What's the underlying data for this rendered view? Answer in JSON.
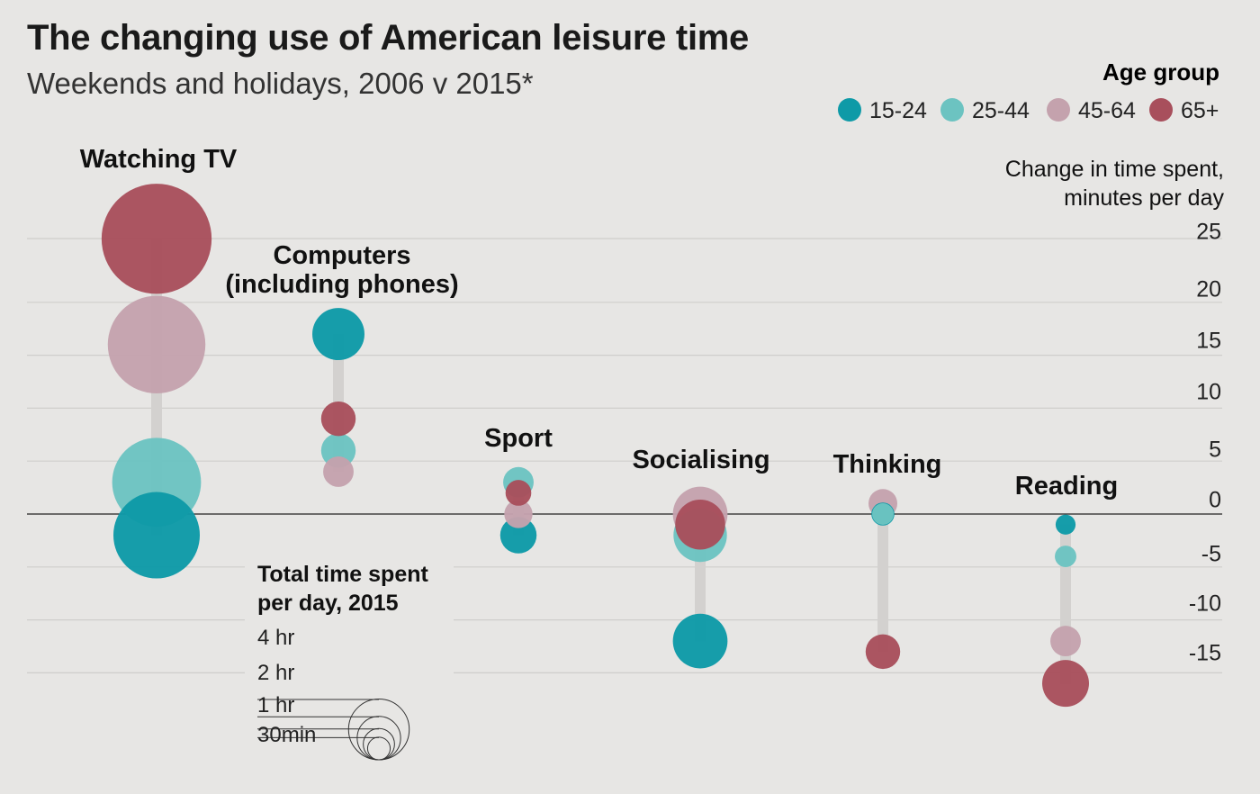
{
  "title": "The changing use of American leisure time",
  "subtitle": "Weekends and holidays, 2006 v 2015*",
  "legend": {
    "title": "Age group",
    "items": [
      {
        "label": "15-24",
        "color": "#0e9aa7"
      },
      {
        "label": "25-44",
        "color": "#6cc3c1"
      },
      {
        "label": "45-64",
        "color": "#c4a2ad"
      },
      {
        "label": "65+",
        "color": "#a84f5c"
      }
    ]
  },
  "size_legend": {
    "title_line1": "Total time spent",
    "title_line2": "per day, 2015",
    "items": [
      {
        "label": "4 hr",
        "minutes": 240
      },
      {
        "label": "2 hr",
        "minutes": 120
      },
      {
        "label": "1 hr",
        "minutes": 60
      },
      {
        "label": "30min",
        "minutes": 30
      }
    ]
  },
  "chart_data": {
    "type": "scatter",
    "title": "The changing use of American leisure time",
    "subtitle": "Weekends and holidays, 2006 v 2015*",
    "ylabel_line1": "Change in time spent,",
    "ylabel_line2": "minutes per day",
    "ylim": [
      -18,
      27
    ],
    "yticks": [
      25,
      20,
      15,
      10,
      5,
      0,
      -5,
      -10,
      -15
    ],
    "ytick_labels": [
      "25",
      "20",
      "15",
      "10",
      "5",
      "0",
      "-5",
      "-10",
      "-15"
    ],
    "series_names": [
      "15-24",
      "25-44",
      "45-64",
      "65+"
    ],
    "categories": [
      {
        "name": "Watching TV",
        "label_lines": [
          "Watching TV"
        ],
        "points": [
          {
            "group": "15-24",
            "change": -2,
            "total_minutes": 225
          },
          {
            "group": "25-44",
            "change": 3,
            "total_minutes": 238
          },
          {
            "group": "45-64",
            "change": 16,
            "total_minutes": 287
          },
          {
            "group": "65+",
            "change": 26,
            "total_minutes": 365
          }
        ]
      },
      {
        "name": "Computers (including phones)",
        "label_lines": [
          "Computers",
          "(including phones)"
        ],
        "points": [
          {
            "group": "15-24",
            "change": 17,
            "total_minutes": 82
          },
          {
            "group": "25-44",
            "change": 6,
            "total_minutes": 36
          },
          {
            "group": "45-64",
            "change": 4,
            "total_minutes": 28
          },
          {
            "group": "65+",
            "change": 9,
            "total_minutes": 36
          }
        ]
      },
      {
        "name": "Sport",
        "label_lines": [
          "Sport"
        ],
        "points": [
          {
            "group": "15-24",
            "change": -2,
            "total_minutes": 40
          },
          {
            "group": "25-44",
            "change": 3,
            "total_minutes": 28
          },
          {
            "group": "45-64",
            "change": 0,
            "total_minutes": 24
          },
          {
            "group": "65+",
            "change": 2,
            "total_minutes": 20
          }
        ]
      },
      {
        "name": "Socialising",
        "label_lines": [
          "Socialising"
        ],
        "points": [
          {
            "group": "15-24",
            "change": -12,
            "total_minutes": 90
          },
          {
            "group": "25-44",
            "change": -2,
            "total_minutes": 86
          },
          {
            "group": "45-64",
            "change": 0,
            "total_minutes": 90
          },
          {
            "group": "65+",
            "change": -1,
            "total_minutes": 75
          }
        ]
      },
      {
        "name": "Thinking",
        "label_lines": [
          "Thinking"
        ],
        "points": [
          {
            "group": "15-24",
            "change": 0,
            "total_minutes": 16
          },
          {
            "group": "25-44",
            "change": 0,
            "total_minutes": 14
          },
          {
            "group": "45-64",
            "change": 1,
            "total_minutes": 25
          },
          {
            "group": "65+",
            "change": -13,
            "total_minutes": 36
          }
        ]
      },
      {
        "name": "Reading",
        "label_lines": [
          "Reading"
        ],
        "points": [
          {
            "group": "15-24",
            "change": -1,
            "total_minutes": 12
          },
          {
            "group": "25-44",
            "change": -4,
            "total_minutes": 14
          },
          {
            "group": "45-64",
            "change": -12,
            "total_minutes": 28
          },
          {
            "group": "65+",
            "change": -16,
            "total_minutes": 66
          }
        ]
      }
    ]
  }
}
